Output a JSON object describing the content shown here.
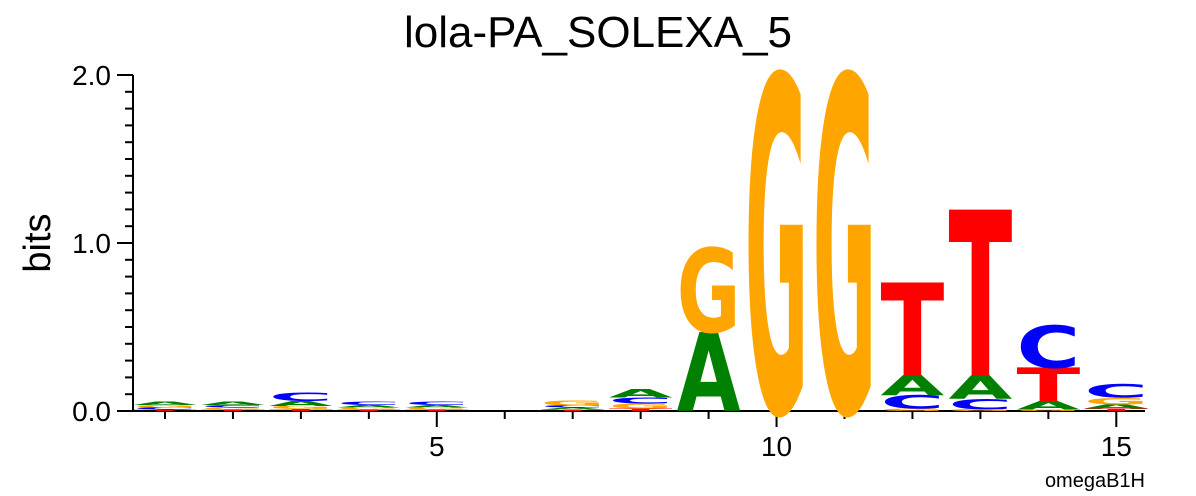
{
  "chart_data": {
    "type": "sequence-logo",
    "title": "lola-PA_SOLEXA_5",
    "ylabel": "bits",
    "xlabel": "",
    "ylim": [
      0,
      2
    ],
    "yticks_major": [
      0,
      1,
      2
    ],
    "ytick_labels": [
      "0.0",
      "1.0",
      "2.0"
    ],
    "xticks": [
      5,
      10,
      15
    ],
    "xtick_labels": [
      "5",
      "10",
      "15"
    ],
    "corner_label": "omegaB1H",
    "colors": {
      "A": "#008000",
      "C": "#0000ff",
      "G": "#ffa500",
      "T": "#ff0000"
    },
    "positions": [
      {
        "pos": 1,
        "letters": [
          {
            "base": "T",
            "bits": 0.008
          },
          {
            "base": "C",
            "bits": 0.014
          },
          {
            "base": "G",
            "bits": 0.014
          },
          {
            "base": "A",
            "bits": 0.018
          }
        ]
      },
      {
        "pos": 2,
        "letters": [
          {
            "base": "T",
            "bits": 0.008
          },
          {
            "base": "G",
            "bits": 0.012
          },
          {
            "base": "C",
            "bits": 0.016
          },
          {
            "base": "A",
            "bits": 0.018
          }
        ]
      },
      {
        "pos": 3,
        "letters": [
          {
            "base": "T",
            "bits": 0.012
          },
          {
            "base": "G",
            "bits": 0.018
          },
          {
            "base": "A",
            "bits": 0.03
          },
          {
            "base": "C",
            "bits": 0.05
          }
        ]
      },
      {
        "pos": 4,
        "letters": [
          {
            "base": "T",
            "bits": 0.008
          },
          {
            "base": "G",
            "bits": 0.012
          },
          {
            "base": "A",
            "bits": 0.016
          },
          {
            "base": "C",
            "bits": 0.02
          }
        ]
      },
      {
        "pos": 5,
        "letters": [
          {
            "base": "T",
            "bits": 0.008
          },
          {
            "base": "G",
            "bits": 0.012
          },
          {
            "base": "A",
            "bits": 0.016
          },
          {
            "base": "C",
            "bits": 0.02
          }
        ]
      },
      {
        "pos": 6,
        "letters": []
      },
      {
        "pos": 7,
        "letters": [
          {
            "base": "T",
            "bits": 0.008
          },
          {
            "base": "A",
            "bits": 0.012
          },
          {
            "base": "C",
            "bits": 0.014
          },
          {
            "base": "G",
            "bits": 0.03
          }
        ]
      },
      {
        "pos": 8,
        "letters": [
          {
            "base": "T",
            "bits": 0.015
          },
          {
            "base": "G",
            "bits": 0.03
          },
          {
            "base": "C",
            "bits": 0.035
          },
          {
            "base": "A",
            "bits": 0.05
          }
        ]
      },
      {
        "pos": 9,
        "letters": [
          {
            "base": "A",
            "bits": 0.47
          },
          {
            "base": "G",
            "bits": 0.5
          }
        ]
      },
      {
        "pos": 10,
        "letters": [
          {
            "base": "G",
            "bits": 2.0
          }
        ]
      },
      {
        "pos": 11,
        "letters": [
          {
            "base": "G",
            "bits": 2.0
          }
        ]
      },
      {
        "pos": 12,
        "letters": [
          {
            "base": "G",
            "bits": 0.015
          },
          {
            "base": "C",
            "bits": 0.08
          },
          {
            "base": "A",
            "bits": 0.12
          },
          {
            "base": "T",
            "bits": 0.55
          }
        ]
      },
      {
        "pos": 13,
        "letters": [
          {
            "base": "G",
            "bits": 0.01
          },
          {
            "base": "C",
            "bits": 0.06
          },
          {
            "base": "A",
            "bits": 0.14
          },
          {
            "base": "T",
            "bits": 0.99
          }
        ]
      },
      {
        "pos": 14,
        "letters": [
          {
            "base": "G",
            "bits": 0.008
          },
          {
            "base": "A",
            "bits": 0.05
          },
          {
            "base": "T",
            "bits": 0.2
          },
          {
            "base": "C",
            "bits": 0.25
          }
        ]
      },
      {
        "pos": 15,
        "letters": [
          {
            "base": "T",
            "bits": 0.015
          },
          {
            "base": "A",
            "bits": 0.025
          },
          {
            "base": "G",
            "bits": 0.04
          },
          {
            "base": "C",
            "bits": 0.08
          }
        ]
      }
    ]
  }
}
